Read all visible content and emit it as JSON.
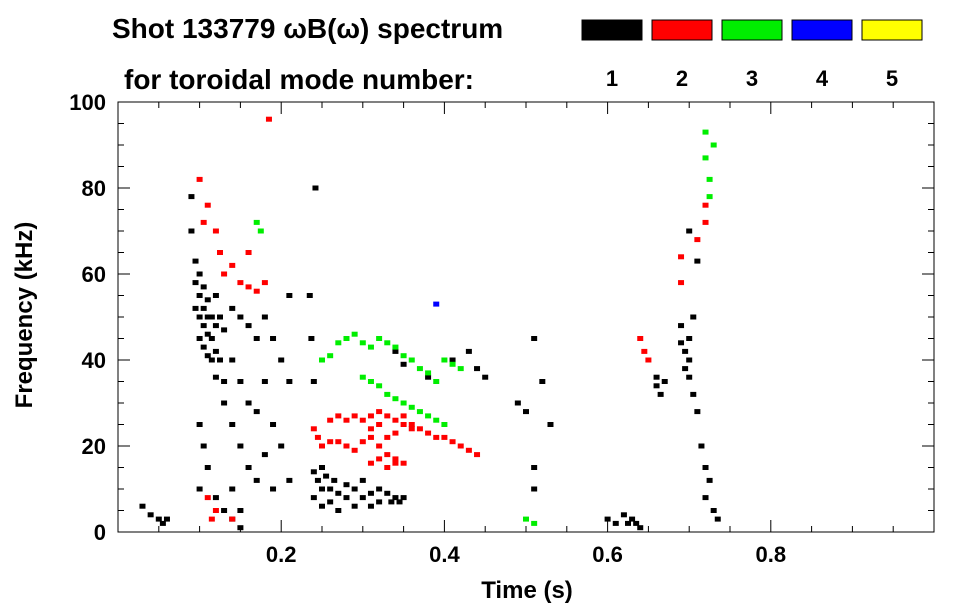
{
  "chart_data": {
    "type": "scatter",
    "title_line1": "Shot 133779 ωB(ω) spectrum",
    "title_line2": "for toroidal mode number:",
    "xlabel": "Time (s)",
    "ylabel": "Frequency (kHz)",
    "xlim": [
      0.0,
      1.0
    ],
    "ylim": [
      0,
      100
    ],
    "xticks": [
      {
        "value": 0.2,
        "label": "0.2"
      },
      {
        "value": 0.4,
        "label": "0.4"
      },
      {
        "value": 0.6,
        "label": "0.6"
      },
      {
        "value": 0.8,
        "label": "0.8"
      }
    ],
    "yticks": [
      {
        "value": 0,
        "label": "0"
      },
      {
        "value": 20,
        "label": "20"
      },
      {
        "value": 40,
        "label": "40"
      },
      {
        "value": 60,
        "label": "60"
      },
      {
        "value": 80,
        "label": "80"
      },
      {
        "value": 100,
        "label": "100"
      }
    ],
    "grid": false,
    "legend_position": "top-right",
    "legend": [
      {
        "label": "1",
        "color": "#000000"
      },
      {
        "label": "2",
        "color": "#ff0000"
      },
      {
        "label": "3",
        "color": "#00ee00"
      },
      {
        "label": "4",
        "color": "#0000ff"
      },
      {
        "label": "5",
        "color": "#ffff00"
      }
    ],
    "series": [
      {
        "mode": 1,
        "color": "#000000",
        "points": [
          [
            0.03,
            6
          ],
          [
            0.04,
            4
          ],
          [
            0.05,
            3
          ],
          [
            0.055,
            2
          ],
          [
            0.06,
            3
          ],
          [
            0.09,
            78
          ],
          [
            0.09,
            70
          ],
          [
            0.095,
            63
          ],
          [
            0.095,
            58
          ],
          [
            0.095,
            52
          ],
          [
            0.1,
            60
          ],
          [
            0.1,
            55
          ],
          [
            0.1,
            50
          ],
          [
            0.1,
            45
          ],
          [
            0.105,
            57
          ],
          [
            0.105,
            52
          ],
          [
            0.105,
            48
          ],
          [
            0.105,
            43
          ],
          [
            0.11,
            54
          ],
          [
            0.11,
            50
          ],
          [
            0.11,
            46
          ],
          [
            0.11,
            41
          ],
          [
            0.115,
            50
          ],
          [
            0.115,
            45
          ],
          [
            0.115,
            40
          ],
          [
            0.12,
            55
          ],
          [
            0.12,
            48
          ],
          [
            0.12,
            42
          ],
          [
            0.12,
            36
          ],
          [
            0.125,
            50
          ],
          [
            0.125,
            40
          ],
          [
            0.13,
            47
          ],
          [
            0.13,
            35
          ],
          [
            0.13,
            30
          ],
          [
            0.1,
            25
          ],
          [
            0.1,
            10
          ],
          [
            0.105,
            20
          ],
          [
            0.11,
            15
          ],
          [
            0.12,
            8
          ],
          [
            0.13,
            5
          ],
          [
            0.14,
            3
          ],
          [
            0.15,
            1
          ],
          [
            0.14,
            52
          ],
          [
            0.14,
            40
          ],
          [
            0.14,
            25
          ],
          [
            0.14,
            10
          ],
          [
            0.15,
            50
          ],
          [
            0.15,
            35
          ],
          [
            0.15,
            20
          ],
          [
            0.15,
            5
          ],
          [
            0.16,
            48
          ],
          [
            0.16,
            30
          ],
          [
            0.16,
            15
          ],
          [
            0.17,
            45
          ],
          [
            0.17,
            28
          ],
          [
            0.17,
            12
          ],
          [
            0.18,
            50
          ],
          [
            0.18,
            35
          ],
          [
            0.18,
            18
          ],
          [
            0.19,
            45
          ],
          [
            0.19,
            25
          ],
          [
            0.19,
            10
          ],
          [
            0.2,
            40
          ],
          [
            0.2,
            20
          ],
          [
            0.21,
            55
          ],
          [
            0.21,
            35
          ],
          [
            0.21,
            12
          ],
          [
            0.235,
            55
          ],
          [
            0.237,
            45
          ],
          [
            0.24,
            35
          ],
          [
            0.242,
            80
          ],
          [
            0.24,
            14
          ],
          [
            0.24,
            8
          ],
          [
            0.245,
            12
          ],
          [
            0.25,
            15
          ],
          [
            0.25,
            10
          ],
          [
            0.25,
            6
          ],
          [
            0.255,
            13
          ],
          [
            0.26,
            10
          ],
          [
            0.26,
            7
          ],
          [
            0.265,
            12
          ],
          [
            0.27,
            9
          ],
          [
            0.27,
            5
          ],
          [
            0.28,
            11
          ],
          [
            0.28,
            8
          ],
          [
            0.29,
            10
          ],
          [
            0.29,
            6
          ],
          [
            0.3,
            12
          ],
          [
            0.3,
            8
          ],
          [
            0.31,
            9
          ],
          [
            0.31,
            6
          ],
          [
            0.32,
            10
          ],
          [
            0.32,
            7
          ],
          [
            0.33,
            9
          ],
          [
            0.335,
            7
          ],
          [
            0.34,
            8
          ],
          [
            0.345,
            7
          ],
          [
            0.35,
            8
          ],
          [
            0.34,
            42
          ],
          [
            0.35,
            39
          ],
          [
            0.38,
            36
          ],
          [
            0.41,
            40
          ],
          [
            0.43,
            42
          ],
          [
            0.44,
            38
          ],
          [
            0.45,
            36
          ],
          [
            0.49,
            30
          ],
          [
            0.5,
            28
          ],
          [
            0.51,
            45
          ],
          [
            0.51,
            15
          ],
          [
            0.51,
            10
          ],
          [
            0.52,
            35
          ],
          [
            0.53,
            25
          ],
          [
            0.6,
            3
          ],
          [
            0.61,
            2
          ],
          [
            0.62,
            4
          ],
          [
            0.625,
            2
          ],
          [
            0.63,
            3
          ],
          [
            0.635,
            2
          ],
          [
            0.64,
            1
          ],
          [
            0.66,
            36
          ],
          [
            0.66,
            34
          ],
          [
            0.665,
            32
          ],
          [
            0.67,
            35
          ],
          [
            0.69,
            48
          ],
          [
            0.69,
            44
          ],
          [
            0.695,
            42
          ],
          [
            0.695,
            38
          ],
          [
            0.7,
            45
          ],
          [
            0.7,
            40
          ],
          [
            0.7,
            36
          ],
          [
            0.705,
            50
          ],
          [
            0.705,
            32
          ],
          [
            0.71,
            28
          ],
          [
            0.715,
            20
          ],
          [
            0.72,
            15
          ],
          [
            0.72,
            8
          ],
          [
            0.725,
            12
          ],
          [
            0.73,
            5
          ],
          [
            0.735,
            3
          ],
          [
            0.7,
            70
          ],
          [
            0.71,
            63
          ]
        ]
      },
      {
        "mode": 2,
        "color": "#ff0000",
        "points": [
          [
            0.1,
            82
          ],
          [
            0.11,
            76
          ],
          [
            0.105,
            72
          ],
          [
            0.12,
            70
          ],
          [
            0.125,
            65
          ],
          [
            0.13,
            60
          ],
          [
            0.14,
            62
          ],
          [
            0.15,
            58
          ],
          [
            0.16,
            57
          ],
          [
            0.17,
            56
          ],
          [
            0.18,
            58
          ],
          [
            0.16,
            65
          ],
          [
            0.185,
            96
          ],
          [
            0.11,
            8
          ],
          [
            0.12,
            5
          ],
          [
            0.115,
            3
          ],
          [
            0.14,
            3
          ],
          [
            0.24,
            24
          ],
          [
            0.245,
            22
          ],
          [
            0.25,
            20
          ],
          [
            0.26,
            21
          ],
          [
            0.27,
            21
          ],
          [
            0.28,
            20
          ],
          [
            0.29,
            19
          ],
          [
            0.3,
            21
          ],
          [
            0.31,
            22
          ],
          [
            0.32,
            20
          ],
          [
            0.33,
            18
          ],
          [
            0.34,
            17
          ],
          [
            0.26,
            26
          ],
          [
            0.27,
            27
          ],
          [
            0.28,
            26
          ],
          [
            0.29,
            27
          ],
          [
            0.3,
            26
          ],
          [
            0.31,
            27
          ],
          [
            0.32,
            28
          ],
          [
            0.33,
            27
          ],
          [
            0.34,
            26
          ],
          [
            0.35,
            25
          ],
          [
            0.36,
            24
          ],
          [
            0.37,
            24
          ],
          [
            0.38,
            23
          ],
          [
            0.39,
            22
          ],
          [
            0.4,
            22
          ],
          [
            0.41,
            21
          ],
          [
            0.42,
            20
          ],
          [
            0.43,
            19
          ],
          [
            0.44,
            18
          ],
          [
            0.31,
            24
          ],
          [
            0.32,
            25
          ],
          [
            0.33,
            22
          ],
          [
            0.34,
            23
          ],
          [
            0.35,
            27
          ],
          [
            0.36,
            25
          ],
          [
            0.31,
            16
          ],
          [
            0.32,
            17
          ],
          [
            0.33,
            15
          ],
          [
            0.34,
            16
          ],
          [
            0.35,
            16
          ],
          [
            0.64,
            45
          ],
          [
            0.645,
            42
          ],
          [
            0.65,
            40
          ],
          [
            0.69,
            58
          ],
          [
            0.69,
            64
          ],
          [
            0.71,
            68
          ],
          [
            0.72,
            76
          ],
          [
            0.72,
            72
          ]
        ]
      },
      {
        "mode": 3,
        "color": "#00ee00",
        "points": [
          [
            0.17,
            72
          ],
          [
            0.175,
            70
          ],
          [
            0.25,
            40
          ],
          [
            0.26,
            41
          ],
          [
            0.27,
            44
          ],
          [
            0.28,
            45
          ],
          [
            0.29,
            46
          ],
          [
            0.3,
            44
          ],
          [
            0.31,
            43
          ],
          [
            0.32,
            45
          ],
          [
            0.33,
            44
          ],
          [
            0.34,
            43
          ],
          [
            0.35,
            41
          ],
          [
            0.36,
            40
          ],
          [
            0.37,
            38
          ],
          [
            0.38,
            37
          ],
          [
            0.39,
            35
          ],
          [
            0.4,
            40
          ],
          [
            0.41,
            39
          ],
          [
            0.42,
            38
          ],
          [
            0.3,
            36
          ],
          [
            0.31,
            35
          ],
          [
            0.32,
            34
          ],
          [
            0.33,
            32
          ],
          [
            0.34,
            31
          ],
          [
            0.35,
            30
          ],
          [
            0.36,
            29
          ],
          [
            0.37,
            28
          ],
          [
            0.38,
            27
          ],
          [
            0.39,
            26
          ],
          [
            0.4,
            25
          ],
          [
            0.5,
            3
          ],
          [
            0.51,
            2
          ],
          [
            0.72,
            93
          ],
          [
            0.72,
            87
          ],
          [
            0.725,
            82
          ],
          [
            0.725,
            78
          ],
          [
            0.73,
            90
          ]
        ]
      },
      {
        "mode": 4,
        "color": "#0000ff",
        "points": [
          [
            0.39,
            53
          ]
        ]
      },
      {
        "mode": 5,
        "color": "#ffff00",
        "points": []
      }
    ]
  }
}
